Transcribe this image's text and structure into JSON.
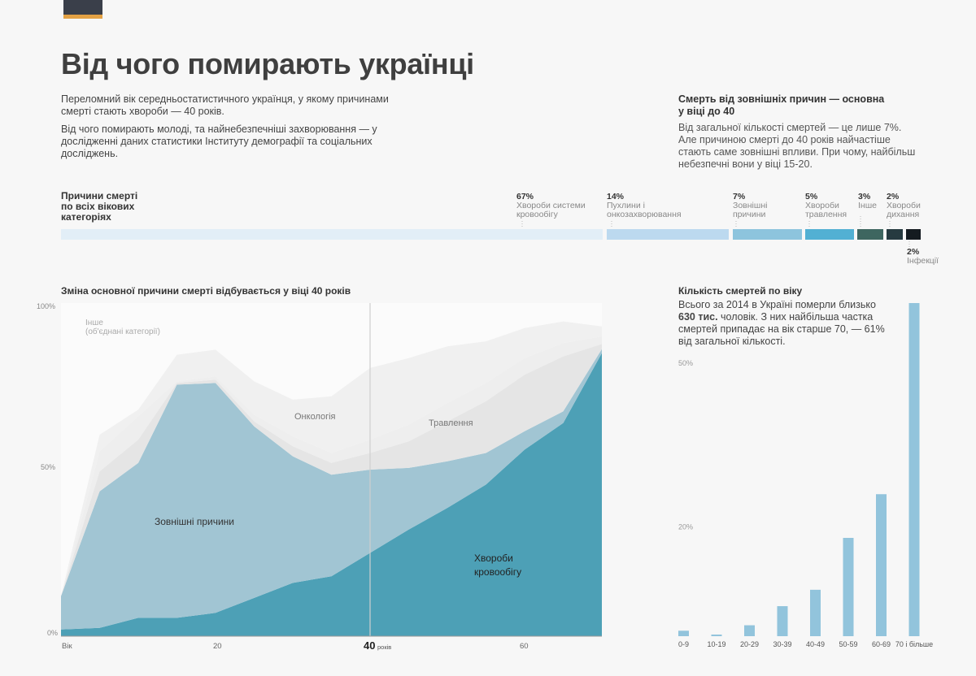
{
  "title": "Від чого помирають українці",
  "intro": {
    "p1": "Переломний вік середньостатистичного українця, у якому причинами смерті стають хвороби — 40 років.",
    "p2": "Від чого помирають молоді, та найнебезпечніші захворювання — у дослідженні даних статистики Інституту демографії та соціальних досліджень."
  },
  "external": {
    "title": "Смерть від зовнішніх причин — основна у віці до 40",
    "text": "Від загальної кількості смертей — це лише 7%. Але причиною смерті до 40 років найчастіше стають саме зовнішні впливи. При чому, найбільш небезпечні вони у віці 15-20."
  },
  "categories": {
    "title": "Причини смерті по всіх вікових категоріях",
    "items": [
      {
        "pct": "67%",
        "value": 67,
        "name": "Хвороби системи кровообігу",
        "color": "#e2eef7"
      },
      {
        "pct": "14%",
        "value": 14,
        "name": "Пухлини і онкозахворювання",
        "color": "#bcd9ef"
      },
      {
        "pct": "7%",
        "value": 7,
        "name": "Зовнішні причини",
        "color": "#8dc4dd"
      },
      {
        "pct": "5%",
        "value": 5,
        "name": "Хвороби травлення",
        "color": "#52b0d3"
      },
      {
        "pct": "3%",
        "value": 3,
        "name": "Інше",
        "color": "#3e6660"
      },
      {
        "pct": "2%",
        "value": 2,
        "name": "Хвороби дихання",
        "color": "#263a40"
      },
      {
        "pct": "2%",
        "value": 2,
        "name": "Інфекції",
        "color": "#141b20"
      }
    ]
  },
  "area_section": {
    "title": "Зміна основної причини смерті відбувається у віці 40 років",
    "marker_value": "40",
    "marker_unit": "років"
  },
  "age_section": {
    "title": "Кількість смертей по віку",
    "text_before": "Всього за 2014 в Україні померли близько ",
    "text_bold": "630 тис.",
    "text_after": " чоловік. З них найбільша частка смертей припадає на вік старше 70, — 61% від загальної кількості."
  },
  "chart_data": [
    {
      "type": "area",
      "stacked": true,
      "title": "Зміна основної причини смерті відбувається у віці 40 років",
      "x": [
        0,
        5,
        10,
        15,
        20,
        25,
        30,
        35,
        40,
        45,
        50,
        55,
        60,
        65,
        70
      ],
      "xlim": [
        0,
        70
      ],
      "ylim": [
        0,
        100
      ],
      "y_ticks": [
        "100%",
        "50%",
        "0%"
      ],
      "x_ticks": [
        {
          "value": 0,
          "label": "Вік"
        },
        {
          "value": 20,
          "label": "20"
        },
        {
          "value": 60,
          "label": "60"
        }
      ],
      "annotations": [
        "Інше",
        "(об'єднані категорії)",
        "Онкологія",
        "Травлення",
        "Зовнішні причини",
        "Хвороби",
        "кровообігу"
      ],
      "series": [
        {
          "name": "Хвороби кровообігу",
          "color": "#4da0b6",
          "values": [
            2,
            2.5,
            5.5,
            5.5,
            7,
            11.5,
            16,
            18,
            25,
            32,
            38.5,
            45.5,
            56,
            64,
            85
          ]
        },
        {
          "name": "Зовнішні причини",
          "color": "#a1c5d3",
          "values": [
            10,
            41,
            46.5,
            70,
            69,
            51.5,
            38,
            30.5,
            25,
            18.5,
            14,
            9.5,
            5.5,
            3.5,
            1.2
          ]
        },
        {
          "name": "Онкологія",
          "color": "#e5e5e5",
          "values": [
            0,
            6,
            7,
            0.5,
            1,
            1.5,
            3,
            3.5,
            5,
            8,
            12,
            15.5,
            17,
            16.5,
            1.5
          ]
        },
        {
          "name": "Травлення",
          "color": "#eeeeee",
          "values": [
            0,
            6,
            7,
            0.5,
            1,
            2,
            3,
            3,
            4,
            5,
            5.5,
            5.5,
            5,
            4,
            2.3
          ]
        },
        {
          "name": "Інше",
          "color": "#f0f0f0",
          "values": [
            0,
            5,
            2,
            8,
            8,
            10,
            11,
            17,
            21.5,
            20,
            17,
            12.5,
            9,
            6.5,
            3
          ]
        }
      ]
    },
    {
      "type": "bar",
      "title": "Кількість смертей по віку",
      "categories": [
        "0-9",
        "10-19",
        "20-29",
        "30-39",
        "40-49",
        "50-59",
        "60-69",
        "70 і більше"
      ],
      "values": [
        1,
        0.3,
        2,
        5.5,
        8.5,
        18,
        26,
        61
      ],
      "ylim": [
        0,
        61
      ],
      "y_ticks": [
        {
          "value": 50,
          "label": "50%"
        },
        {
          "value": 20,
          "label": "20%"
        }
      ],
      "color": "#92c4dc"
    }
  ]
}
